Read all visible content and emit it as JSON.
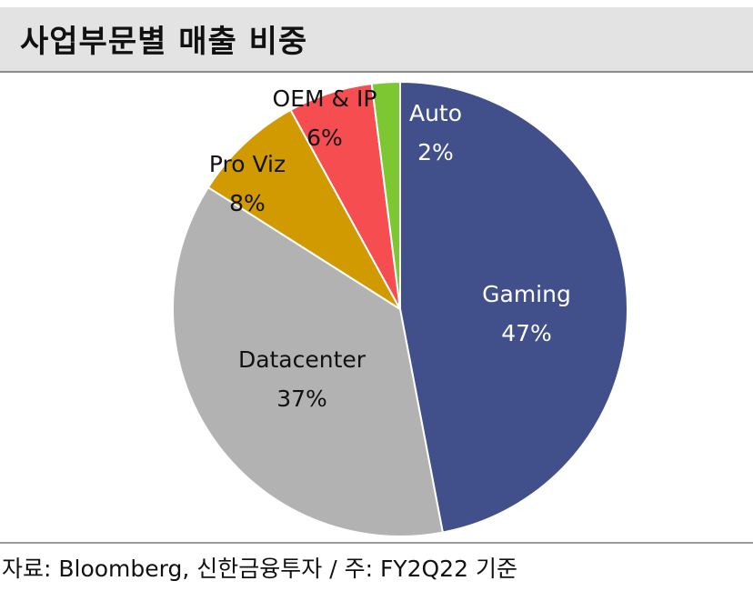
{
  "header": {
    "title": "사업부문별 매출 비중"
  },
  "footer": {
    "source": "자료: Bloomberg, 신한금융투자 / 주: FY2Q22 기준"
  },
  "chart_data": {
    "type": "pie",
    "title": "사업부문별 매출 비중",
    "slices": [
      {
        "name": "Gaming",
        "value": 47,
        "label": "47%",
        "color": "#414f8a",
        "text_color": "#ffffff"
      },
      {
        "name": "Datacenter",
        "value": 37,
        "label": "37%",
        "color": "#b2b2b2",
        "text_color": "#111111"
      },
      {
        "name": "Pro Viz",
        "value": 8,
        "label": "8%",
        "color": "#d19a00",
        "text_color": "#111111"
      },
      {
        "name": "OEM & IP",
        "value": 6,
        "label": "6%",
        "color": "#f54d50",
        "text_color": "#111111"
      },
      {
        "name": "Auto",
        "value": 2,
        "label": "2%",
        "color": "#7dc832",
        "text_color": "#ffffff"
      }
    ],
    "start_angle": "12 o'clock",
    "direction": "clockwise",
    "legend": "none",
    "labels": "category and percentage on slices"
  }
}
